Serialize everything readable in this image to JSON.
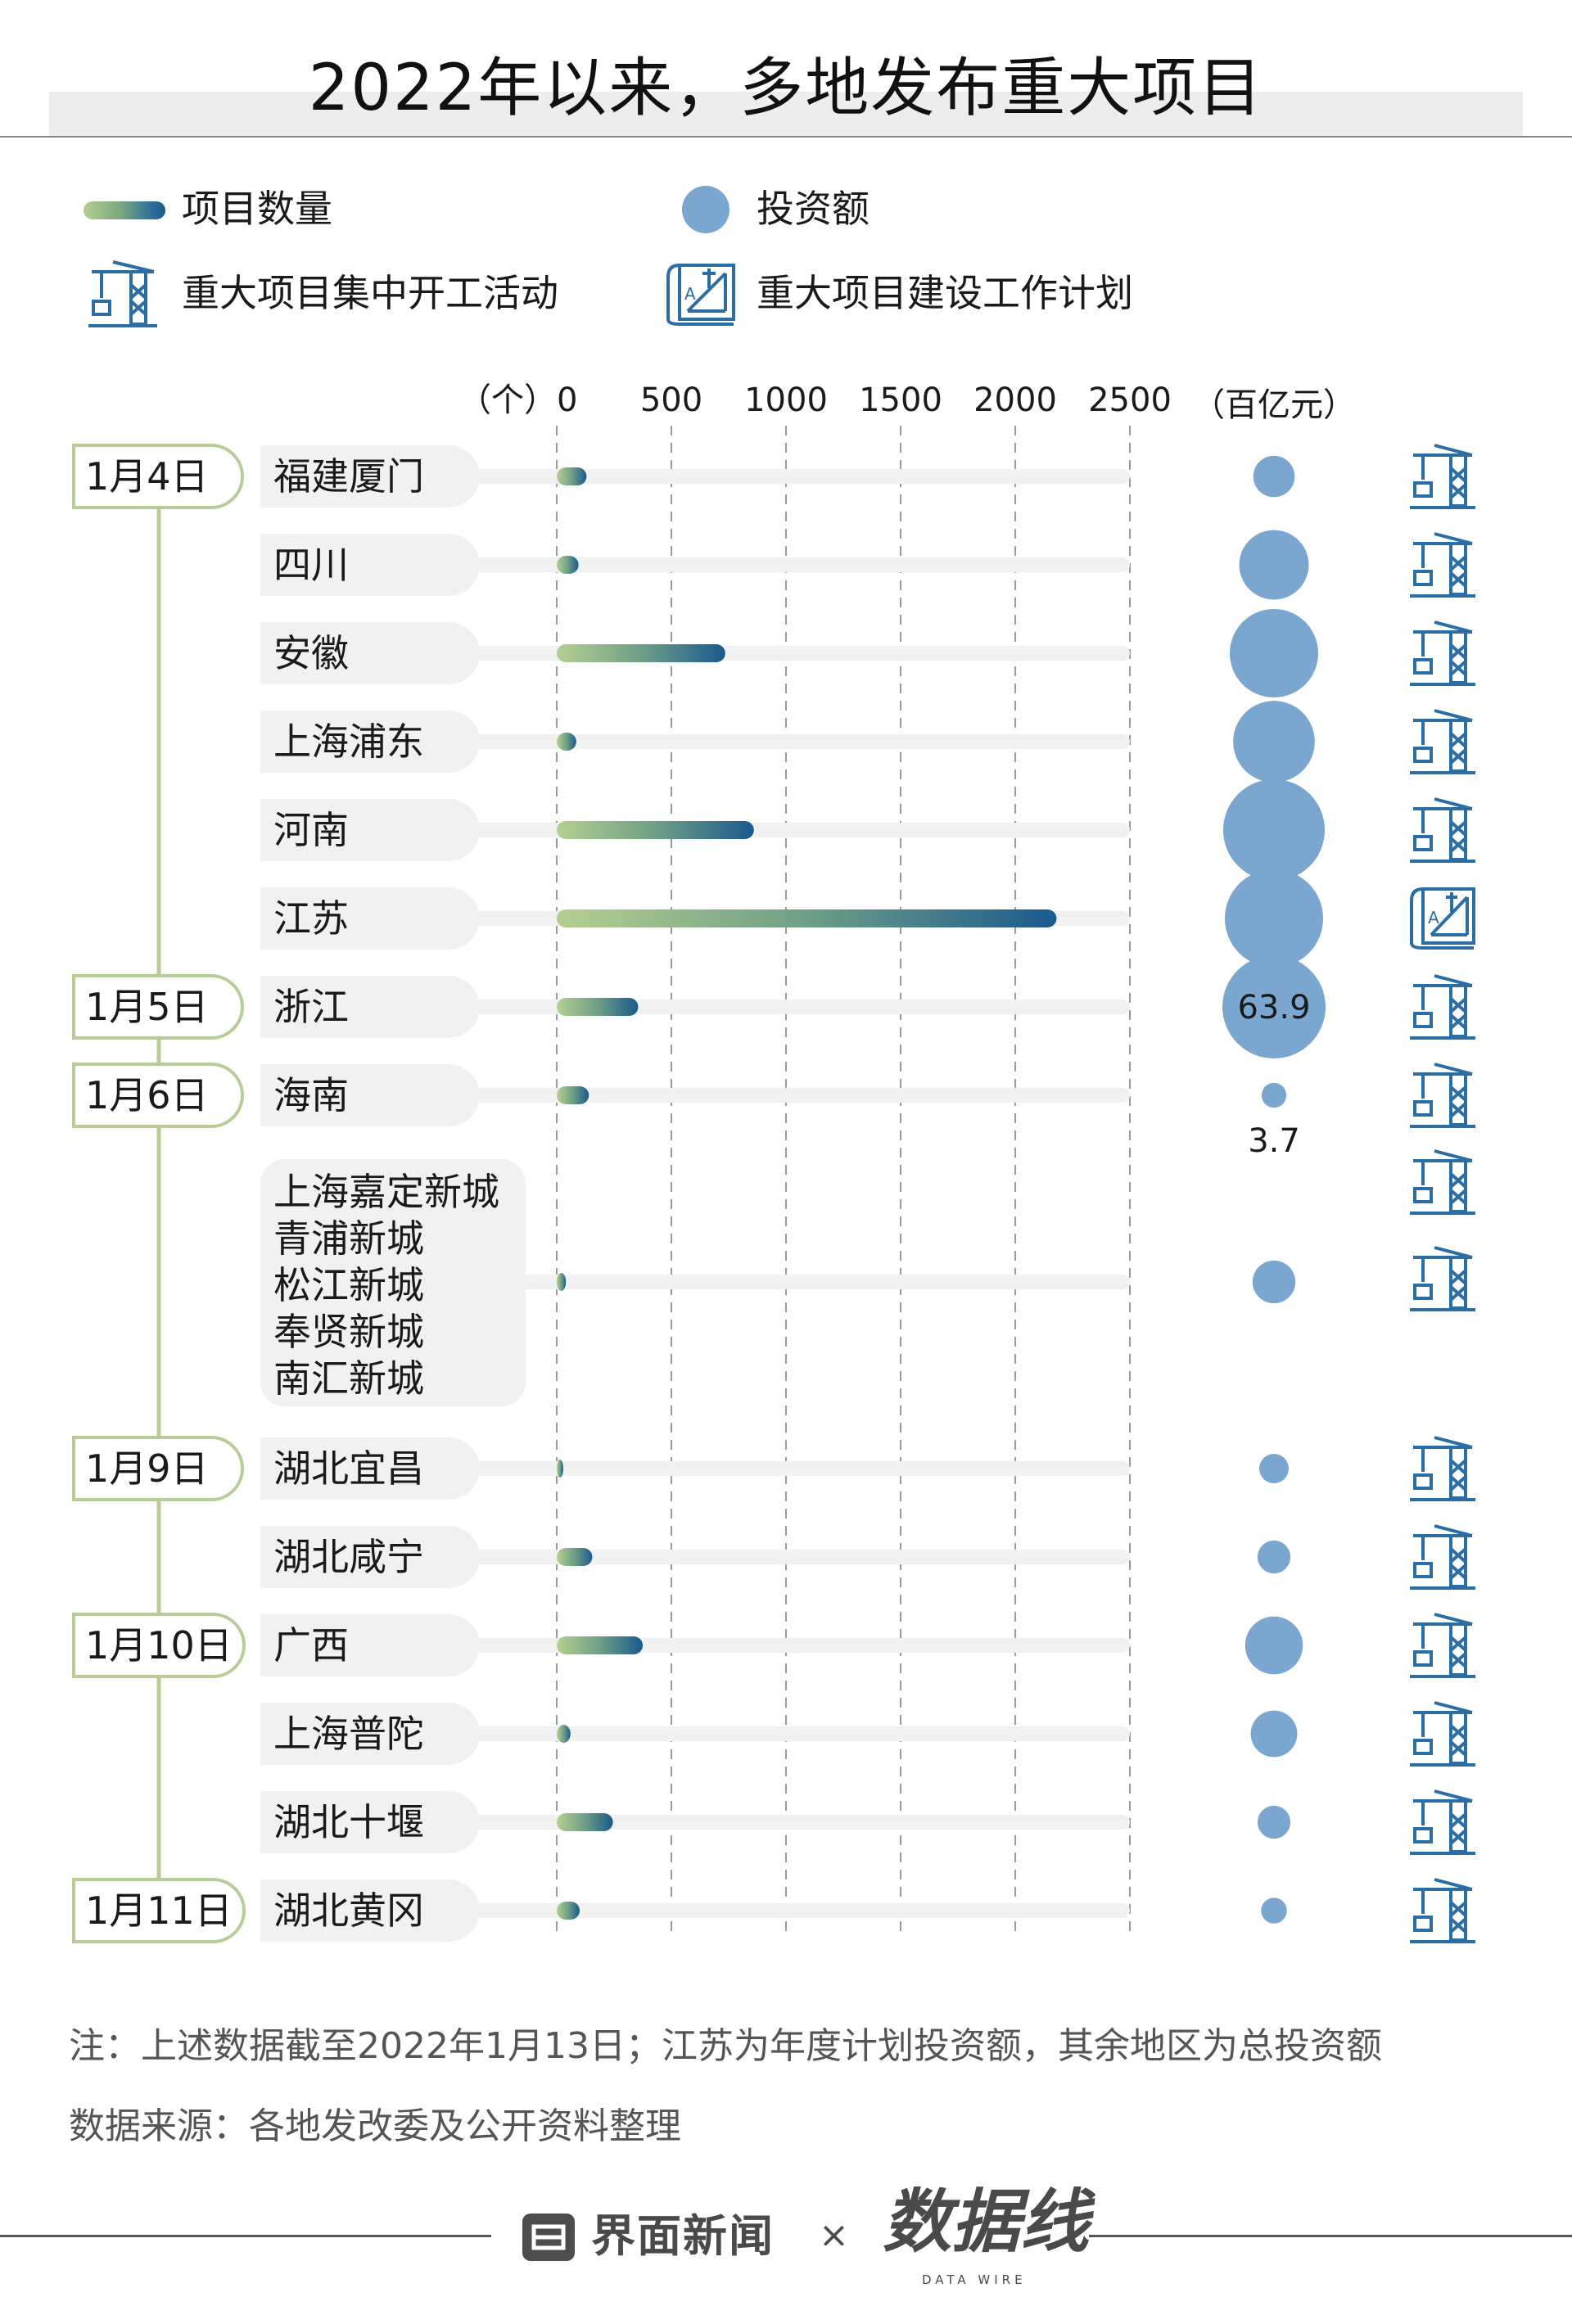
{
  "title": "2022年以来，多地发布重大项目",
  "legend": {
    "count_label": "项目数量",
    "investment_label": "投资额",
    "groundbreaking_label": "重大项目集中开工活动",
    "plan_label": "重大项目建设工作计划"
  },
  "icons": {
    "groundbreaking": "crane-icon",
    "plan": "blueprint-icon"
  },
  "colors": {
    "bar_start": "#b5cf91",
    "bar_end": "#1a5a8e",
    "bubble": "#7aa6cf",
    "icon": "#2b6ea6",
    "date_line": "#b7cc96"
  },
  "chart_data": {
    "type": "bar",
    "xlabel": "（个）",
    "bubble_unit": "（百亿元）",
    "x_ticks": [
      "0",
      "500",
      "1000",
      "1500",
      "2000",
      "2500"
    ],
    "xlim": [
      0,
      2500
    ],
    "rows": [
      {
        "date": "1月4日",
        "label": "福建厦门",
        "count": 130,
        "investment": 10.3,
        "activity": "groundbreaking"
      },
      {
        "date": "",
        "label": "四川",
        "count": 95,
        "investment": 29,
        "activity": "groundbreaking"
      },
      {
        "date": "",
        "label": "安徽",
        "count": 735,
        "investment": 47,
        "activity": "groundbreaking"
      },
      {
        "date": "",
        "label": "上海浦东",
        "count": 85,
        "investment": 40,
        "activity": "groundbreaking"
      },
      {
        "date": "",
        "label": "河南",
        "count": 860,
        "investment": 62,
        "activity": "groundbreaking"
      },
      {
        "date": "",
        "label": "江苏",
        "count": 2180,
        "investment": 58,
        "activity": "plan"
      },
      {
        "date": "1月5日",
        "label": "浙江",
        "count": 355,
        "investment": 63.9,
        "investment_label": "63.9",
        "activity": "groundbreaking"
      },
      {
        "date": "1月6日",
        "label": "海南",
        "count": 140,
        "investment": 3.7,
        "investment_label": "3.7",
        "activity": "groundbreaking"
      },
      {
        "date": "",
        "label": "上海嘉定新城\n青浦新城\n松江新城\n奉贤新城\n南汇新城",
        "count": 40,
        "investment": 11,
        "activity": "groundbreaking_x2"
      },
      {
        "date": "1月9日",
        "label": "湖北宜昌",
        "count": 20,
        "investment": 5.2,
        "activity": "groundbreaking"
      },
      {
        "date": "",
        "label": "湖北咸宁",
        "count": 155,
        "investment": 6.5,
        "activity": "groundbreaking"
      },
      {
        "date": "1月10日",
        "label": "广西",
        "count": 375,
        "investment": 20,
        "activity": "groundbreaking"
      },
      {
        "date": "",
        "label": "上海普陀",
        "count": 60,
        "investment": 13,
        "activity": "groundbreaking"
      },
      {
        "date": "",
        "label": "湖北十堰",
        "count": 245,
        "investment": 6.5,
        "activity": "groundbreaking"
      },
      {
        "date": "1月11日",
        "label": "湖北黄冈",
        "count": 100,
        "investment": 4,
        "activity": "groundbreaking"
      }
    ]
  },
  "note": "注：上述数据截至2022年1月13日；江苏为年度计划投资额，其余地区为总投资额",
  "source": "数据来源：各地发改委及公开资料整理",
  "footer": {
    "brand": "界面新闻",
    "separator": "×",
    "partner": "数据线",
    "partner_sub": "DATA WIRE"
  }
}
